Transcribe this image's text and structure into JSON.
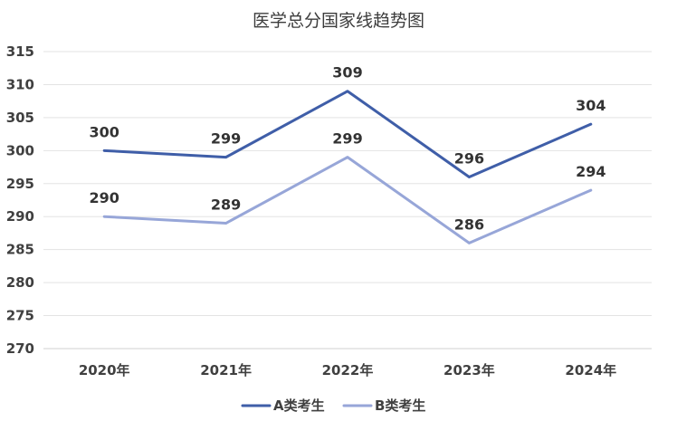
{
  "chart_data": {
    "type": "line",
    "title": "医学总分国家线趋势图",
    "categories": [
      "2020年",
      "2021年",
      "2022年",
      "2023年",
      "2024年"
    ],
    "series": [
      {
        "name": "A类考生",
        "values": [
          300,
          299,
          309,
          296,
          304
        ],
        "color": "#3f5ea8"
      },
      {
        "name": "B类考生",
        "values": [
          290,
          289,
          299,
          286,
          294
        ],
        "color": "#97a6d8"
      }
    ],
    "ylim": [
      270,
      315
    ],
    "yticks": [
      "270",
      "275",
      "280",
      "285",
      "290",
      "295",
      "300",
      "305",
      "310",
      "315"
    ],
    "grid": true,
    "legend": "bottom",
    "show_data_labels": true
  }
}
